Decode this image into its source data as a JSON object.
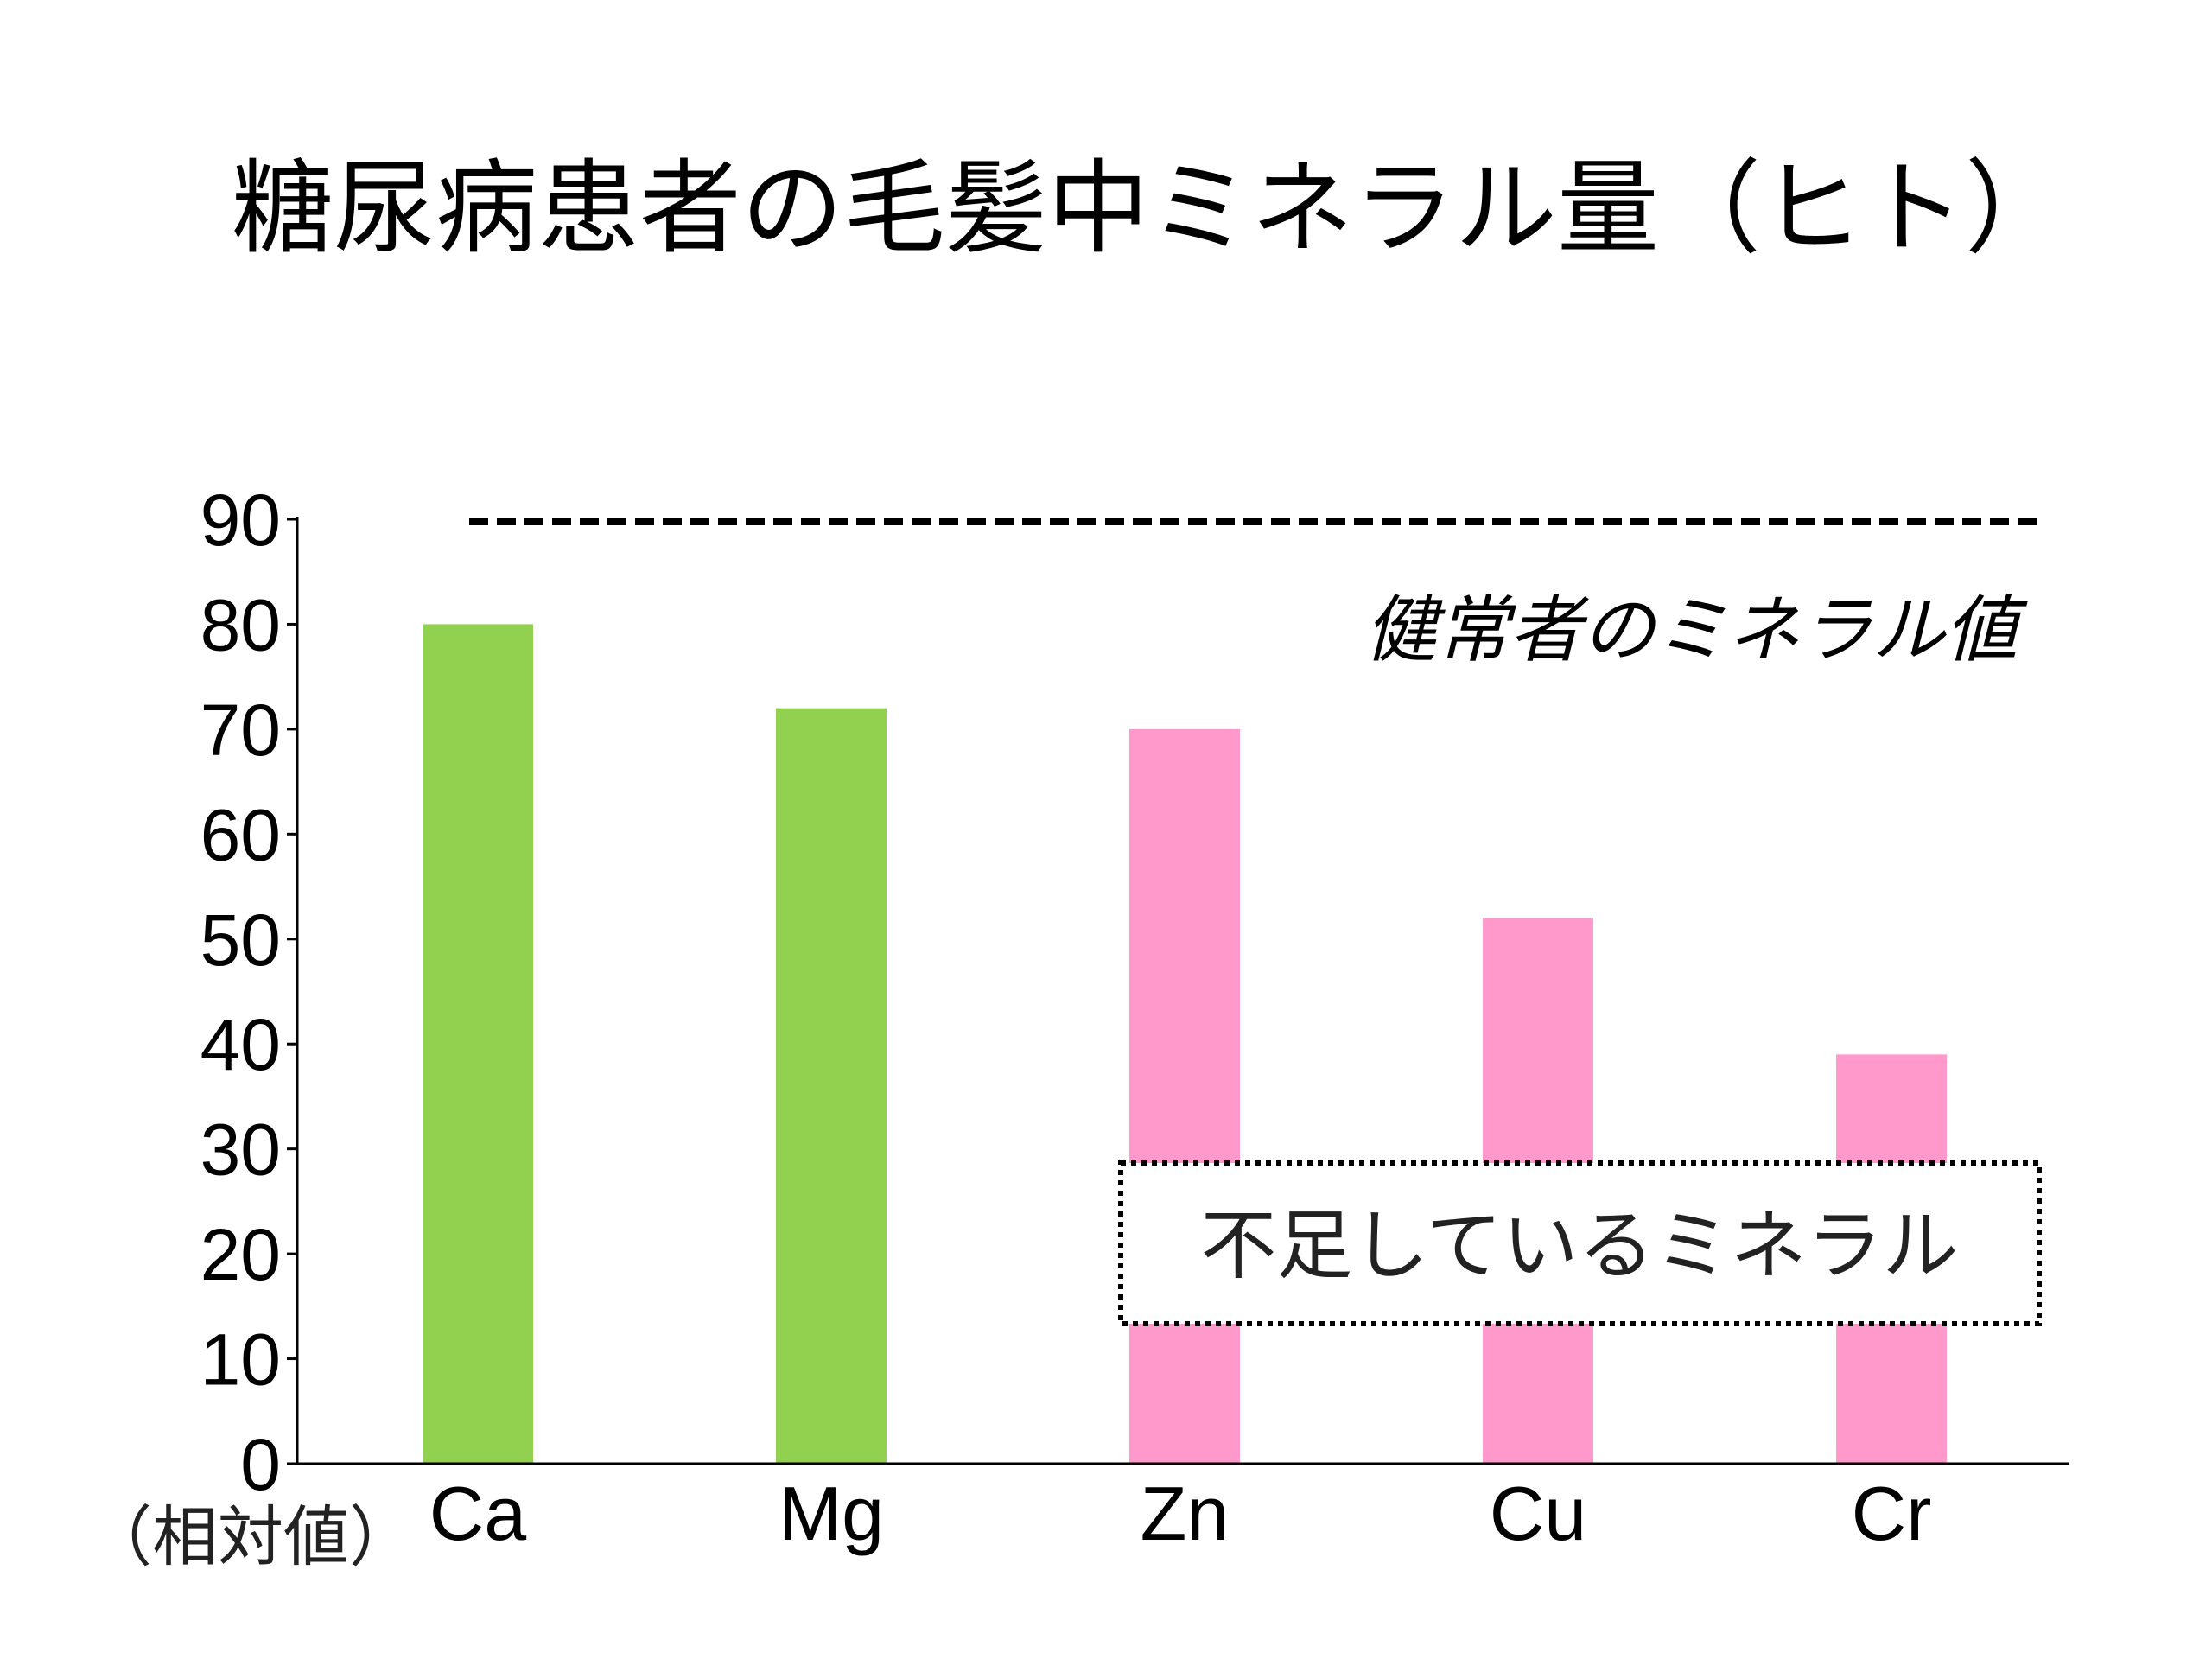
{
  "chart_data": {
    "type": "bar",
    "title": "糖尿病患者の毛髪中ミネラル量（ヒト）",
    "ylabel": "（相対値）",
    "categories": [
      "Ca",
      "Mg",
      "Zn",
      "Cu",
      "Cr"
    ],
    "values": [
      80,
      72,
      70,
      52,
      39
    ],
    "bar_colors": [
      "#92d050",
      "#92d050",
      "#ff99cc",
      "#ff99cc",
      "#ff99cc"
    ],
    "ylim": [
      0,
      90
    ],
    "yticks": [
      "0",
      "10",
      "20",
      "30",
      "40",
      "50",
      "60",
      "70",
      "80",
      "90"
    ],
    "grid": false,
    "reference_line": {
      "value": 90,
      "style": "dashed",
      "label": "健常者のミネラル値"
    },
    "annotation_box": {
      "text": "不足しているミネラル",
      "style": "dotted"
    }
  }
}
